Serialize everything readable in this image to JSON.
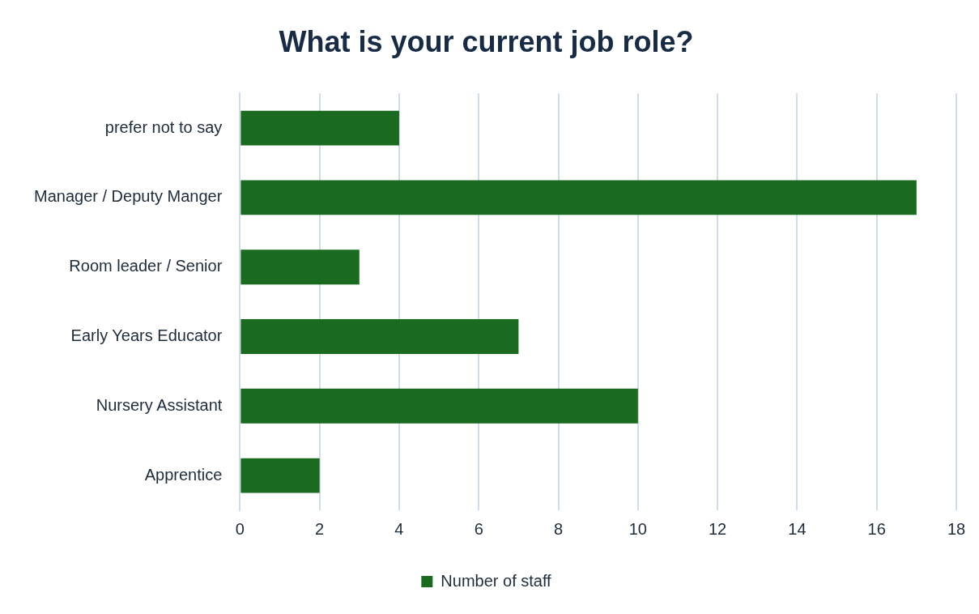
{
  "chart_data": {
    "type": "bar",
    "orientation": "horizontal",
    "title": "What is your current job role?",
    "categories": [
      "prefer not to say",
      "Manager / Deputy Manger",
      "Room leader / Senior",
      "Early Years Educator",
      "Nursery Assistant",
      "Apprentice"
    ],
    "series": [
      {
        "name": "Number of staff",
        "color": "#1a6b1f",
        "values": [
          4,
          17,
          3,
          7,
          10,
          2
        ]
      }
    ],
    "xlim": [
      0,
      18
    ],
    "xticks": [
      0,
      2,
      4,
      6,
      8,
      10,
      12,
      14,
      16,
      18
    ],
    "grid": "x",
    "legend": "bottom"
  }
}
